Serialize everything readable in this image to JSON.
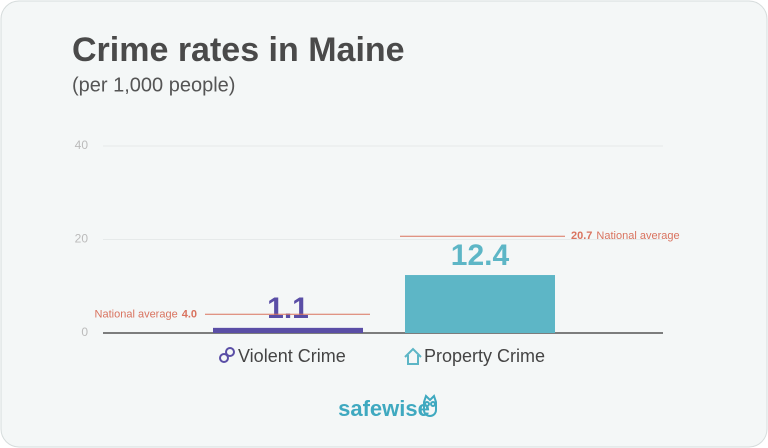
{
  "chart_data": {
    "type": "bar",
    "title": "Crime rates in Maine",
    "subtitle": "(per 1,000 people)",
    "categories": [
      "Violent Crime",
      "Property Crime"
    ],
    "values": [
      1.1,
      12.4
    ],
    "colors": [
      "#5a4ea6",
      "#5db6c6"
    ],
    "ylim": [
      0,
      40
    ],
    "yticks": [
      0,
      20,
      40
    ],
    "grid": true,
    "national_averages": [
      {
        "label": "National average",
        "value": 4.0,
        "value_label": "4.0"
      },
      {
        "label": "National average",
        "value": 20.7,
        "value_label": "20.7"
      }
    ],
    "reference_color": "#d9735f",
    "brand": "safewise"
  }
}
